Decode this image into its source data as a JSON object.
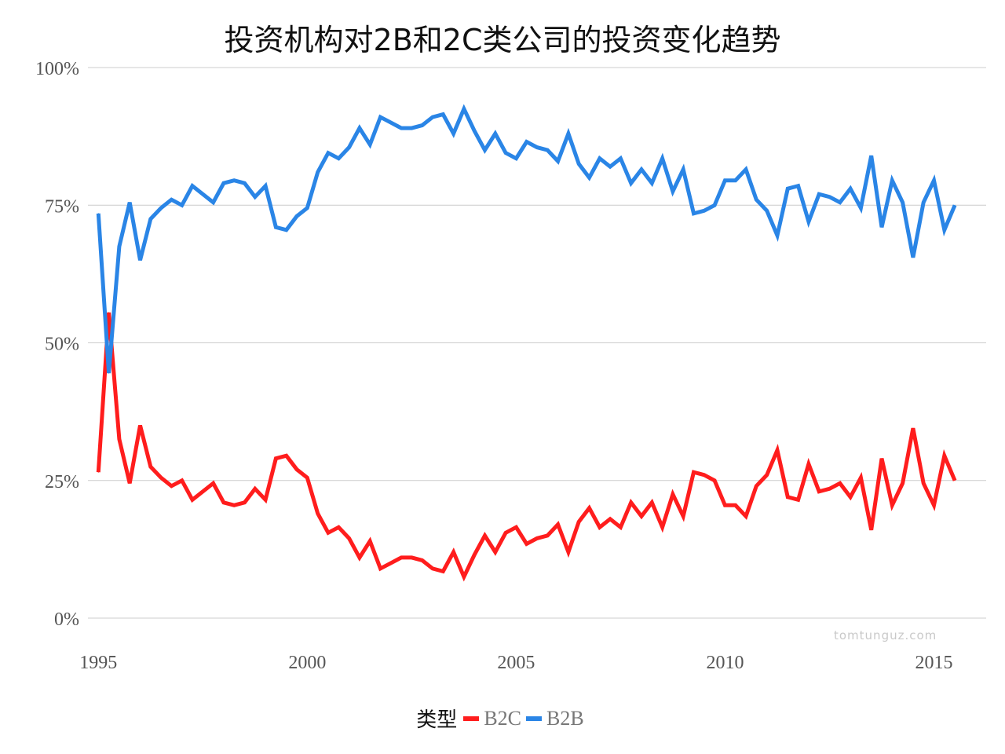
{
  "title": "投资机构对2B和2C类公司的投资变化趋势",
  "watermark": "tomtunguz.com",
  "legend": {
    "title": "类型",
    "items": [
      {
        "label": "B2C",
        "color": "#ff1d1d"
      },
      {
        "label": "B2B",
        "color": "#2a85e6"
      }
    ]
  },
  "chart_data": {
    "type": "line",
    "title": "投资机构对2B和2C类公司的投资变化趋势",
    "xlabel": "",
    "ylabel": "",
    "xlim": [
      1994.75,
      2016.25
    ],
    "ylim": [
      0,
      100
    ],
    "xticks": [
      1995,
      2000,
      2005,
      2010,
      2015
    ],
    "yticks": [
      0,
      25,
      50,
      75,
      100
    ],
    "ytick_labels": [
      "0%",
      "25%",
      "50%",
      "75%",
      "100%"
    ],
    "grid": "horizontal",
    "legend_position": "bottom",
    "x_start": 1995.0,
    "x_step": 0.25,
    "series": [
      {
        "name": "B2C",
        "color": "#ff1d1d",
        "values": [
          26.5,
          55.5,
          32.5,
          24.5,
          35.0,
          27.5,
          25.5,
          24.0,
          25.0,
          21.5,
          23.0,
          24.5,
          21.0,
          20.5,
          21.0,
          23.5,
          21.5,
          29.0,
          29.5,
          27.0,
          25.5,
          19.0,
          15.5,
          16.5,
          14.5,
          11.0,
          14.0,
          9.0,
          10.0,
          11.0,
          11.0,
          10.5,
          9.0,
          8.5,
          12.0,
          7.5,
          11.5,
          15.0,
          12.0,
          15.5,
          16.5,
          13.5,
          14.5,
          15.0,
          17.0,
          12.0,
          17.5,
          20.0,
          16.5,
          18.0,
          16.5,
          21.0,
          18.5,
          21.0,
          16.5,
          22.5,
          18.5,
          26.5,
          26.0,
          25.0,
          20.5,
          20.5,
          18.5,
          24.0,
          26.0,
          30.5,
          22.0,
          21.5,
          28.0,
          23.0,
          23.5,
          24.5,
          22.0,
          25.5,
          16.0,
          29.0,
          20.5,
          24.5,
          34.5,
          24.5,
          20.5,
          29.5,
          25.0
        ]
      },
      {
        "name": "B2B",
        "color": "#2a85e6",
        "values": [
          73.5,
          44.5,
          67.5,
          75.5,
          65.0,
          72.5,
          74.5,
          76.0,
          75.0,
          78.5,
          77.0,
          75.5,
          79.0,
          79.5,
          79.0,
          76.5,
          78.5,
          71.0,
          70.5,
          73.0,
          74.5,
          81.0,
          84.5,
          83.5,
          85.5,
          89.0,
          86.0,
          91.0,
          90.0,
          89.0,
          89.0,
          89.5,
          91.0,
          91.5,
          88.0,
          92.5,
          88.5,
          85.0,
          88.0,
          84.5,
          83.5,
          86.5,
          85.5,
          85.0,
          83.0,
          88.0,
          82.5,
          80.0,
          83.5,
          82.0,
          83.5,
          79.0,
          81.5,
          79.0,
          83.5,
          77.5,
          81.5,
          73.5,
          74.0,
          75.0,
          79.5,
          79.5,
          81.5,
          76.0,
          74.0,
          69.5,
          78.0,
          78.5,
          72.0,
          77.0,
          76.5,
          75.5,
          78.0,
          74.5,
          84.0,
          71.0,
          79.5,
          75.5,
          65.5,
          75.5,
          79.5,
          70.5,
          75.0
        ]
      }
    ]
  }
}
